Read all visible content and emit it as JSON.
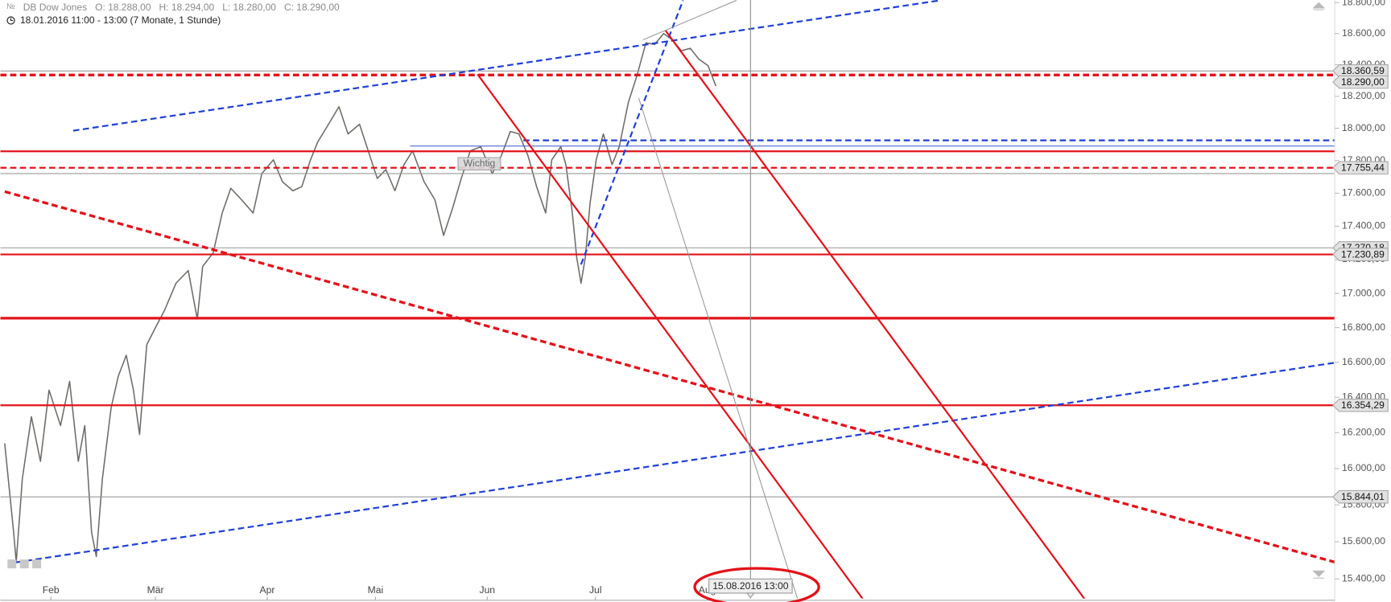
{
  "chart_data": {
    "type": "line",
    "title": "DB Dow Jones",
    "ohlc": [
      {
        "value": 18288,
        "label": "O: 18.288,00"
      },
      {
        "value": 18294,
        "label": "H: 18.294,00"
      },
      {
        "value": 18280,
        "label": "L: 18.280,00"
      },
      {
        "value": 18290,
        "label": "C: 18.290,00"
      }
    ],
    "subtitle": "18.01.2016 11:00 - 13:00 (7 Monate, 1 Stunde)",
    "log_scale": true,
    "xlim": [
      18,
      388
    ],
    "ylim": [
      15400,
      18800
    ],
    "xticks": [
      {
        "value": 32,
        "label": "Feb"
      },
      {
        "value": 61,
        "label": "Mär"
      },
      {
        "value": 92,
        "label": "Apr"
      },
      {
        "value": 122,
        "label": "Mai"
      },
      {
        "value": 153,
        "label": "Jun"
      },
      {
        "value": 183,
        "label": "Jul"
      },
      {
        "value": 214,
        "label": "Aug"
      }
    ],
    "yticks": [
      {
        "value": 15400,
        "label": "15.400,00"
      },
      {
        "value": 15600,
        "label": "15.600,00"
      },
      {
        "value": 15800,
        "label": "15.800,00"
      },
      {
        "value": 16000,
        "label": "16.000,00"
      },
      {
        "value": 16200,
        "label": "16.200,00"
      },
      {
        "value": 16400,
        "label": "16.400,00"
      },
      {
        "value": 16600,
        "label": "16.600,00"
      },
      {
        "value": 16800,
        "label": "16.800,00"
      },
      {
        "value": 17000,
        "label": "17.000,00"
      },
      {
        "value": 17200,
        "label": "17.200,00"
      },
      {
        "value": 17400,
        "label": "17.400,00"
      },
      {
        "value": 17600,
        "label": "17.600,00"
      },
      {
        "value": 17800,
        "label": "17.800,00"
      },
      {
        "value": 18000,
        "label": "18.000,00"
      },
      {
        "value": 18200,
        "label": "18.200,00"
      },
      {
        "value": 18400,
        "label": "18.400,00"
      },
      {
        "value": 18600,
        "label": "18.600,00"
      },
      {
        "value": 18800,
        "label": "18.800,00"
      }
    ],
    "color": "#6e6a66",
    "x": [
      19.2,
      21.7,
      22.4,
      24.1,
      26.6,
      29.1,
      31.5,
      34.7,
      37.2,
      39.6,
      41.4,
      43.3,
      44.6,
      46.3,
      48.7,
      50.7,
      52.9,
      54.9,
      56.6,
      58.6,
      61.0,
      63.5,
      66.7,
      70.1,
      72.6,
      74.1,
      77.0,
      79.5,
      81.9,
      84.9,
      88.1,
      90.5,
      93.7,
      96.2,
      99.1,
      101.6,
      104.0,
      106.0,
      109.0,
      111.9,
      114.4,
      117.6,
      120.0,
      122.5,
      124.9,
      127.4,
      129.9,
      132.3,
      135.5,
      138.5,
      140.9,
      143.4,
      145.8,
      148.3,
      151.2,
      154.4,
      156.9,
      159.4,
      161.8,
      164.3,
      166.7,
      169.2,
      170.9,
      173.4,
      174.8,
      176.6,
      177.8,
      179.0,
      180.2,
      181.5,
      183.2,
      185.2,
      187.6,
      189.6,
      192.1,
      194.5,
      197.0,
      199.4,
      201.9,
      204.3,
      206.8,
      209.3,
      211.7,
      214.2,
      216.4
    ],
    "values": [
      16140,
      15650,
      15490,
      15945,
      16290,
      16040,
      16440,
      16240,
      16490,
      16040,
      16240,
      15650,
      15520,
      15945,
      16340,
      16520,
      16640,
      16440,
      16190,
      16700,
      16800,
      16900,
      17060,
      17135,
      16850,
      17160,
      17240,
      17480,
      17630,
      17560,
      17480,
      17720,
      17805,
      17670,
      17615,
      17640,
      17805,
      17915,
      18025,
      18135,
      17965,
      18025,
      17860,
      17690,
      17745,
      17615,
      17775,
      17860,
      17670,
      17560,
      17345,
      17510,
      17690,
      17860,
      17885,
      17720,
      17830,
      17980,
      17965,
      17830,
      17640,
      17480,
      17805,
      17885,
      17775,
      17480,
      17214,
      17060,
      17215,
      17535,
      17805,
      17965,
      17775,
      17885,
      18160,
      18330,
      18540,
      18530,
      18600,
      18560,
      18490,
      18505,
      18435,
      18395,
      18265
    ],
    "levels": [
      {
        "value": 18335,
        "color": "#e3121a",
        "style": "dashed",
        "width": 3
      },
      {
        "value": 18360.59,
        "color": "#9a9a9a",
        "style": "solid",
        "width": 1
      },
      {
        "value": 17857,
        "color": "#e3121a",
        "style": "solid",
        "width": 2
      },
      {
        "value": 17925,
        "color": "#1f3fd6",
        "style": "dashed",
        "width": 2,
        "x_start": 163.0
      },
      {
        "value": 17890,
        "color": "#4a6ccf",
        "style": "solid",
        "width": 1,
        "x_start": 131.6
      },
      {
        "value": 17755.44,
        "color": "#e3121a",
        "style": "dashed",
        "width": 2
      },
      {
        "value": 17720,
        "color": "#9a9a9a",
        "style": "solid",
        "width": 1
      },
      {
        "value": 17270.18,
        "color": "#9a9a9a",
        "style": "solid",
        "width": 1
      },
      {
        "value": 17230.89,
        "color": "#e3121a",
        "style": "solid",
        "width": 2
      },
      {
        "value": 16855,
        "color": "#e3121a",
        "style": "solid",
        "width": 3
      },
      {
        "value": 16354.29,
        "color": "#e3121a",
        "style": "solid",
        "width": 2
      },
      {
        "value": 15844.01,
        "color": "#9a9a9a",
        "style": "solid",
        "width": 1
      }
    ],
    "trend_lines": [
      {
        "x": [
          38.2,
          278.6
        ],
        "y": [
          17985,
          18815
        ],
        "color": "#1f3fd6",
        "style": "dashed",
        "width": 2
      },
      {
        "x": [
          22.4,
          388
        ],
        "y": [
          15489,
          16597
        ],
        "color": "#1f3fd6",
        "style": "dashed",
        "width": 2
      },
      {
        "x": [
          179.0,
          207.3
        ],
        "y": [
          17171,
          18815
        ],
        "color": "#1f3fd6",
        "style": "dashed",
        "width": 2
      },
      {
        "x": [
          19.2,
          388
        ],
        "y": [
          17610,
          15490
        ],
        "color": "#e3121a",
        "style": "dashed",
        "width": 3
      },
      {
        "x": [
          150.3,
          257.7
        ],
        "y": [
          18340,
          15279
        ],
        "color": "#e3121a",
        "style": "solid",
        "width": 2
      },
      {
        "x": [
          202.4,
          319.2
        ],
        "y": [
          18620,
          15279
        ],
        "color": "#e3121a",
        "style": "solid",
        "width": 2
      },
      {
        "x": [
          196.2,
          222.1
        ],
        "y": [
          18560,
          18815
        ],
        "color": "#9a9a9a",
        "style": "solid",
        "width": 1
      },
      {
        "x": [
          195.0,
          239.3
        ],
        "y": [
          18190,
          15279
        ],
        "color": "#9a9a9a",
        "style": "solid",
        "width": 1
      }
    ],
    "price_labels": [
      {
        "value": 18360.59,
        "label": "18.360,59"
      },
      {
        "value": 18290,
        "label": "18.290,00"
      },
      {
        "value": 17755.44,
        "label": "17.755,44"
      },
      {
        "value": 17270.18,
        "label": "17.270,18"
      },
      {
        "value": 17230.89,
        "label": "17.230,89"
      },
      {
        "value": 16354.29,
        "label": "16.354,29"
      },
      {
        "value": 15844.01,
        "label": "15.844,01"
      }
    ],
    "annotations": [
      {
        "text": "Wichtig",
        "x": 150.8,
        "y": 17780
      }
    ],
    "crosshair": {
      "x": 226.0,
      "label": "15.08.2016 13:00"
    }
  }
}
